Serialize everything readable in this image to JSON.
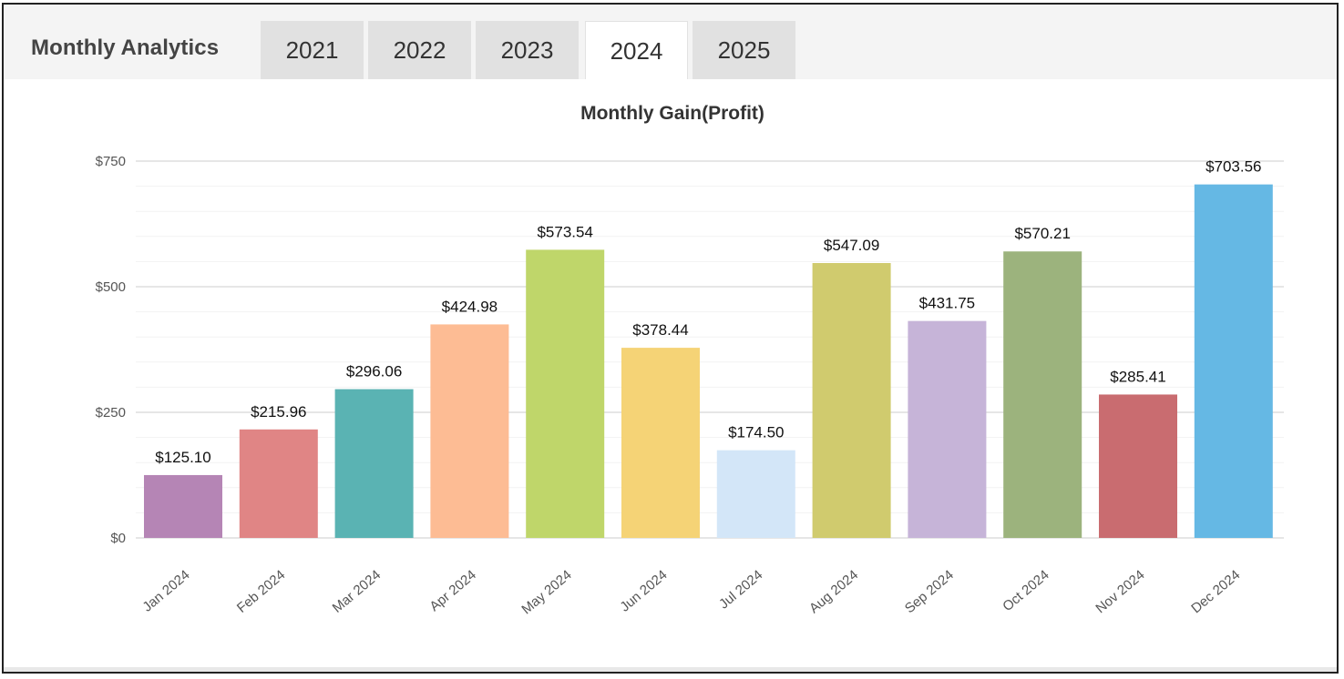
{
  "panel": {
    "title": "Monthly Analytics",
    "tabs": [
      "2021",
      "2022",
      "2023",
      "2024",
      "2025"
    ],
    "active_tab": "2024"
  },
  "chart_data": {
    "type": "bar",
    "title": "Monthly Gain(Profit)",
    "xlabel": "",
    "ylabel": "",
    "categories": [
      "Jan 2024",
      "Feb 2024",
      "Mar 2024",
      "Apr 2024",
      "May 2024",
      "Jun 2024",
      "Jul 2024",
      "Aug 2024",
      "Sep 2024",
      "Oct 2024",
      "Nov 2024",
      "Dec 2024"
    ],
    "values": [
      125.1,
      215.96,
      296.06,
      424.98,
      573.54,
      378.44,
      174.5,
      547.09,
      431.75,
      570.21,
      285.41,
      703.56
    ],
    "value_labels": [
      "$125.10",
      "$215.96",
      "$296.06",
      "$424.98",
      "$573.54",
      "$378.44",
      "$174.50",
      "$547.09",
      "$431.75",
      "$570.21",
      "$285.41",
      "$703.56"
    ],
    "colors": [
      "#b585b5",
      "#e08585",
      "#5ab3b3",
      "#fdbc94",
      "#bfd66a",
      "#f5d376",
      "#d3e6f8",
      "#d0cb6e",
      "#c6b4d8",
      "#9cb37d",
      "#c96c70",
      "#65b8e4"
    ],
    "ylim": [
      0,
      750
    ],
    "yticks": [
      0,
      250,
      500,
      750
    ],
    "ytick_labels": [
      "$0",
      "$250",
      "$500",
      "$750"
    ],
    "grid": true,
    "legend": "none"
  }
}
